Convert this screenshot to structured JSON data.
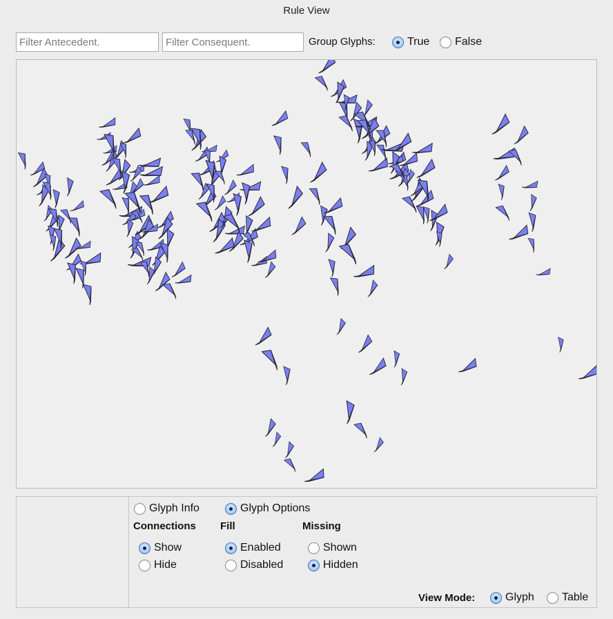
{
  "window": {
    "title": "Rule View"
  },
  "filters": {
    "antecedent_placeholder": "Filter Antecedent.",
    "antecedent_value": "",
    "consequent_placeholder": "Filter Consequent.",
    "consequent_value": ""
  },
  "group_glyphs": {
    "label": "Group Glyphs:",
    "true_label": "True",
    "false_label": "False",
    "selected": "True"
  },
  "glyph_colors": {
    "antecedent_fill": "#7a7ff0",
    "consequent_fill": "#e8201e",
    "outline": "#2a2a3a"
  },
  "options": {
    "info_label": "Glyph Info",
    "options_label": "Glyph Options",
    "selected_tab": "Glyph Options",
    "connections": {
      "heading": "Connections",
      "show": "Show",
      "hide": "Hide",
      "selected": "Show"
    },
    "fill": {
      "heading": "Fill",
      "enabled": "Enabled",
      "disabled": "Disabled",
      "selected": "Enabled"
    },
    "missing": {
      "heading": "Missing",
      "shown": "Shown",
      "hidden": "Hidden",
      "selected": "Hidden"
    }
  },
  "view_mode": {
    "label": "View Mode:",
    "glyph": "Glyph",
    "table": "Table",
    "selected": "Glyph"
  }
}
